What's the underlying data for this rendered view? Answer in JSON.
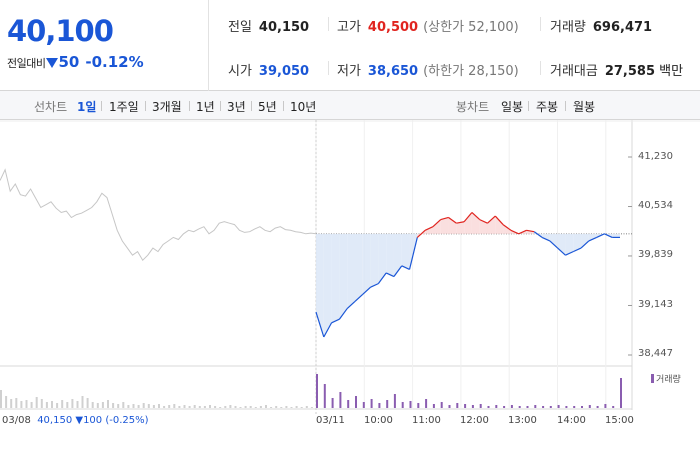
{
  "quote": {
    "price": "40,100",
    "change_label": "전일대비",
    "change_value": "50",
    "change_rate": "-0.12%",
    "prev_close": {
      "label": "전일",
      "value": "40,150"
    },
    "high": {
      "label": "고가",
      "value": "40,500",
      "sub": "(상한가 52,100)"
    },
    "volume": {
      "label": "거래량",
      "value": "696,471"
    },
    "open": {
      "label": "시가",
      "value": "39,050"
    },
    "low": {
      "label": "저가",
      "value": "38,650",
      "sub": "(하한가 28,150)"
    },
    "trade_value": {
      "label": "거래대금",
      "value": "27,585",
      "unit": "백만"
    }
  },
  "periods": {
    "line_label": "선차트",
    "line_tabs": [
      "1일",
      "1주일",
      "3개월",
      "1년",
      "3년",
      "5년",
      "10년"
    ],
    "active_line_tab": 0,
    "candle_label": "봉차트",
    "candle_tabs": [
      "일봉",
      "주봉",
      "월봉"
    ]
  },
  "chart": {
    "y_ticks": [
      "41,230",
      "40,534",
      "39,839",
      "39,143",
      "38,447"
    ],
    "x_ticks": [
      "03/11",
      "10:00",
      "11:00",
      "12:00",
      "13:00",
      "14:00",
      "15:00"
    ],
    "footer_date": "03/08",
    "footer_close": "40,150",
    "footer_change": "▼100 (-0.25%)",
    "volume_legend": "거래량",
    "colors": {
      "up": "#e0241f",
      "down": "#1a56d6",
      "prev": "#c6c6c6",
      "volume": "#8a5db0",
      "fill_down": "#dbe6f7",
      "fill_up": "#f9d9d9"
    }
  },
  "chart_data": {
    "type": "line",
    "y_range": [
      38447,
      41230
    ],
    "baseline": 40150,
    "prev_day": {
      "date": "03/08",
      "values": [
        40900,
        41050,
        40750,
        40850,
        40700,
        40680,
        40780,
        40650,
        40520,
        40560,
        40600,
        40510,
        40450,
        40470,
        40380,
        40420,
        40440,
        40480,
        40520,
        40600,
        40720,
        40660,
        40430,
        40200,
        40050,
        39950,
        39850,
        39900,
        39780,
        39850,
        39950,
        39900,
        40000,
        40050,
        40100,
        40070,
        40150,
        40200,
        40180,
        40220,
        40250,
        40150,
        40200,
        40300,
        40320,
        40300,
        40280,
        40200,
        40170,
        40180,
        40220,
        40250,
        40200,
        40180,
        40230,
        40250,
        40210,
        40200,
        40180,
        40170,
        40150,
        40160,
        40150
      ]
    },
    "today": {
      "date": "03/11",
      "times": [
        "09:00",
        "09:10",
        "09:20",
        "09:30",
        "09:40",
        "09:50",
        "10:00",
        "10:10",
        "10:20",
        "10:30",
        "10:40",
        "10:50",
        "11:00",
        "11:10",
        "11:20",
        "11:30",
        "11:40",
        "11:50",
        "12:00",
        "12:10",
        "12:20",
        "12:30",
        "12:40",
        "12:50",
        "13:00",
        "13:10",
        "13:20",
        "13:30",
        "13:40",
        "13:50",
        "14:00",
        "14:10",
        "14:20",
        "14:30",
        "14:40",
        "14:50",
        "15:00",
        "15:10",
        "15:20",
        "15:30"
      ],
      "values": [
        39050,
        38700,
        38900,
        38950,
        39100,
        39200,
        39300,
        39400,
        39450,
        39600,
        39550,
        39700,
        39650,
        40100,
        40200,
        40250,
        40350,
        40380,
        40300,
        40320,
        40450,
        40350,
        40300,
        40400,
        40280,
        40200,
        40150,
        40200,
        40180,
        40100,
        40050,
        39950,
        39850,
        39900,
        39950,
        40050,
        40100,
        40150,
        40100,
        40100
      ]
    },
    "volume": {
      "prev_day": [
        18,
        12,
        9,
        10,
        7,
        8,
        6,
        11,
        9,
        6,
        7,
        5,
        8,
        6,
        9,
        7,
        12,
        10,
        6,
        5,
        6,
        8,
        5,
        4,
        6,
        3,
        4,
        3,
        5,
        4,
        3,
        4,
        2,
        3,
        4,
        2,
        3,
        2,
        3,
        2,
        2,
        3,
        2,
        1,
        2,
        3,
        2,
        1,
        2,
        2,
        1,
        2,
        3,
        1,
        2,
        1,
        2,
        1,
        2,
        1,
        2,
        1,
        1
      ],
      "today": [
        34,
        24,
        10,
        16,
        8,
        12,
        6,
        9,
        5,
        8,
        14,
        6,
        7,
        5,
        9,
        4,
        6,
        3,
        5,
        4,
        3,
        4,
        2,
        3,
        2,
        3,
        2,
        2,
        3,
        2,
        2,
        3,
        2,
        2,
        2,
        3,
        2,
        4,
        2,
        30
      ]
    }
  }
}
